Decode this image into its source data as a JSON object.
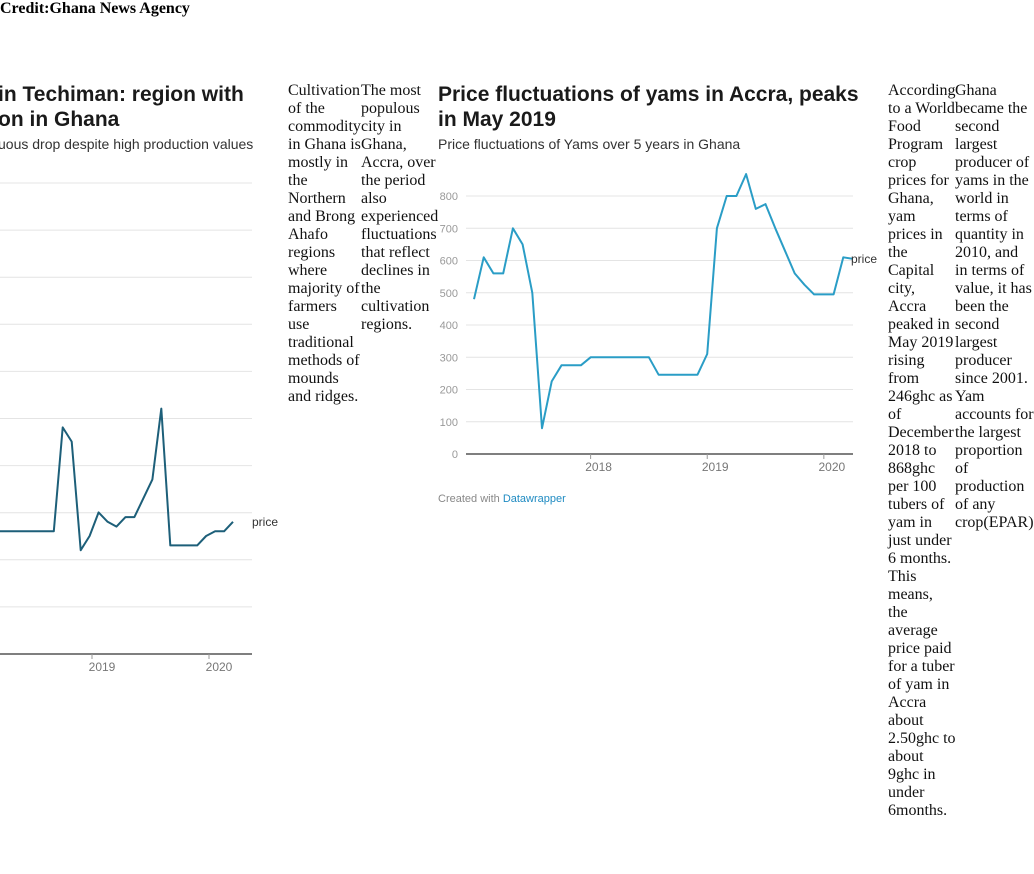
{
  "header": {
    "credit": "Credit:Ghana News Agency"
  },
  "left_chart": {
    "title_line1": "in Techiman: region with",
    "title_line2": "on in Ghana",
    "subtitle": "uous drop despite high production values",
    "series_label": "price",
    "color": "#1d5f79"
  },
  "text_col1": "Cultivation of the commodity in Ghana is mostly in the Northern and Brong Ahafo regions where majority of farmers use traditional methods of mounds and ridges.",
  "text_col2": "The most populous city in Ghana, Accra, over the period also experienced fluctuations that reflect declines in the cultivation regions.",
  "right_chart": {
    "title": "Price fluctuations of yams in Accra, peaks in May 2019",
    "subtitle": "Price fluctuations of Yams over 5 years in Ghana",
    "credit_prefix": "Created with ",
    "credit_link": "Datawrapper",
    "color": "#2a9dc6"
  },
  "text_col3": "According to a World Food Program crop prices for Ghana, yam prices in the Capital city, Accra peaked in May 2019 rising from 246ghc as of December 2018 to 868ghc per 100 tubers of yam in just under 6 months. This means, the average price paid for a tuber of yam in Accra about 2.50ghc to about 9ghc in under 6months.",
  "text_col4": "Ghana became the second largest producer of yams in the world in terms of quantity in 2010, and in terms of value, it has been the second largest producer since 2001. Yam accounts for the largest proportion of production of any crop(EPAR)",
  "chart_data": [
    {
      "type": "line",
      "title": "in Techiman: region with on in Ghana",
      "subtitle": "uous drop despite high production values",
      "x_ticks": [
        "2019",
        "2020"
      ],
      "grid": true,
      "series": [
        {
          "name": "price",
          "points": [
            [
              "2017-01-01",
              0.26
            ],
            [
              "2017-07-01",
              0.26
            ],
            [
              "2017-08-01",
              0.48
            ],
            [
              "2017-09-01",
              0.45
            ],
            [
              "2017-10-01",
              0.22
            ],
            [
              "2017-11-01",
              0.25
            ],
            [
              "2017-12-01",
              0.3
            ],
            [
              "2018-01-01",
              0.28
            ],
            [
              "2018-02-01",
              0.27
            ],
            [
              "2018-03-01",
              0.29
            ],
            [
              "2018-04-01",
              0.29
            ],
            [
              "2018-06-01",
              0.37
            ],
            [
              "2018-07-01",
              0.52
            ],
            [
              "2018-08-01",
              0.23
            ],
            [
              "2018-11-01",
              0.23
            ],
            [
              "2018-12-01",
              0.25
            ],
            [
              "2019-01-01",
              0.26
            ],
            [
              "2019-02-01",
              0.26
            ],
            [
              "2019-03-01",
              0.28
            ]
          ]
        }
      ]
    },
    {
      "type": "line",
      "title": "Price fluctuations of yams in Accra, peaks in May 2019",
      "subtitle": "Price fluctuations of Yams over 5 years in Ghana",
      "x_ticks": [
        "2018",
        "2019",
        "2020"
      ],
      "y_ticks": [
        0,
        100,
        200,
        300,
        400,
        500,
        600,
        700,
        800
      ],
      "ylim": [
        0,
        800
      ],
      "grid": true,
      "series": [
        {
          "name": "price",
          "points": [
            [
              "2017-01",
              480
            ],
            [
              "2017-02",
              610
            ],
            [
              "2017-03",
              560
            ],
            [
              "2017-04",
              560
            ],
            [
              "2017-05",
              700
            ],
            [
              "2017-06",
              650
            ],
            [
              "2017-07",
              500
            ],
            [
              "2017-08",
              80
            ],
            [
              "2017-09",
              225
            ],
            [
              "2017-10",
              275
            ],
            [
              "2017-11",
              275
            ],
            [
              "2017-12",
              275
            ],
            [
              "2018-01",
              300
            ],
            [
              "2018-02",
              300
            ],
            [
              "2018-03",
              300
            ],
            [
              "2018-04",
              300
            ],
            [
              "2018-05",
              300
            ],
            [
              "2018-06",
              300
            ],
            [
              "2018-07",
              300
            ],
            [
              "2018-08",
              246
            ],
            [
              "2018-09",
              246
            ],
            [
              "2018-10",
              246
            ],
            [
              "2018-11",
              246
            ],
            [
              "2018-12",
              246
            ],
            [
              "2019-01",
              310
            ],
            [
              "2019-02",
              700
            ],
            [
              "2019-03",
              800
            ],
            [
              "2019-04",
              800
            ],
            [
              "2019-05",
              868
            ],
            [
              "2019-06",
              760
            ],
            [
              "2019-07",
              775
            ],
            [
              "2019-08",
              700
            ],
            [
              "2019-09",
              630
            ],
            [
              "2019-10",
              560
            ],
            [
              "2019-11",
              525
            ],
            [
              "2019-12",
              495
            ],
            [
              "2020-01",
              495
            ],
            [
              "2020-02",
              495
            ],
            [
              "2020-03",
              610
            ],
            [
              "2020-04",
              605
            ]
          ]
        }
      ]
    }
  ]
}
